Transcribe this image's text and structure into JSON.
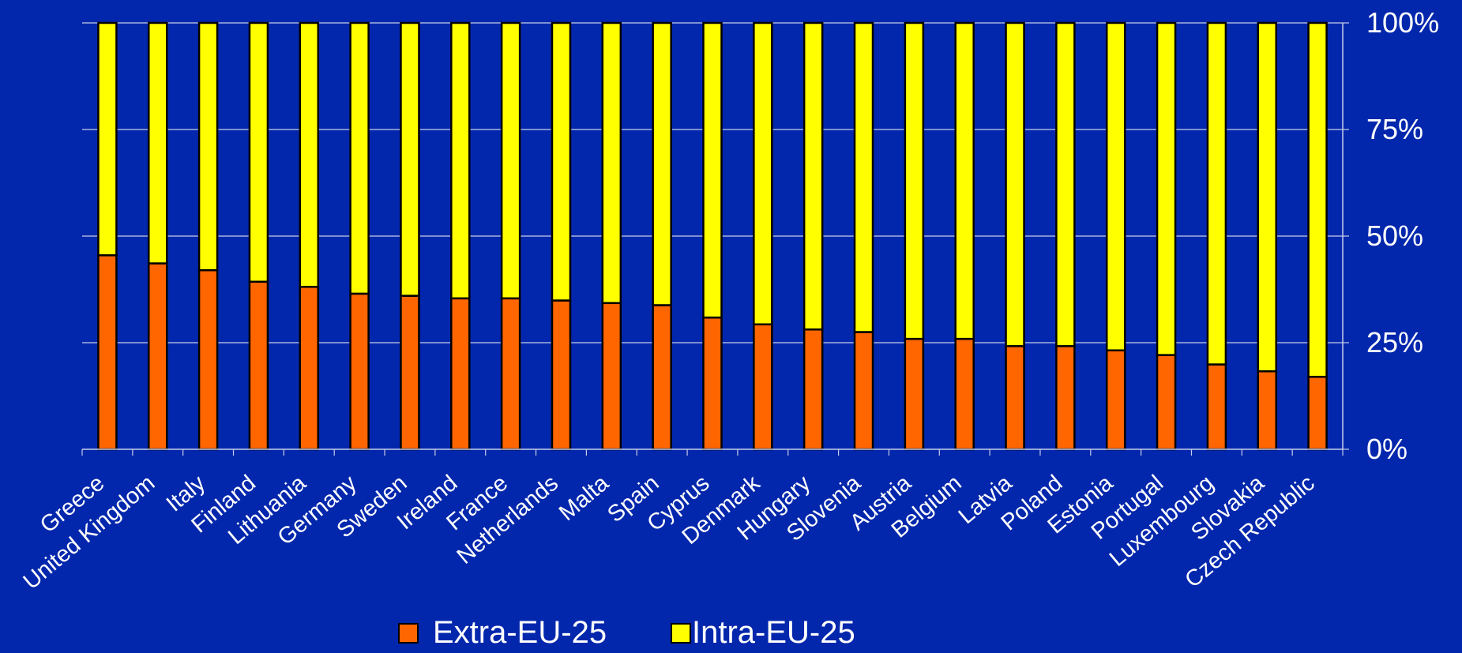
{
  "colors": {
    "background": "#0327ac",
    "grid": "#c8cde8",
    "bar_outline": "#000000",
    "text": "#ffffff",
    "extra_eu": "#ff6600",
    "intra_eu": "#ffff00"
  },
  "chart_data": {
    "type": "bar",
    "stacked": true,
    "percent_stacked": true,
    "categories": [
      "Greece",
      "United Kingdom",
      "Italy",
      "Finland",
      "Lithuania",
      "Germany",
      "Sweden",
      "Ireland",
      "France",
      "Netherlands",
      "Malta",
      "Spain",
      "Cyprus",
      "Denmark",
      "Hungary",
      "Slovenia",
      "Austria",
      "Belgium",
      "Latvia",
      "Poland",
      "Estonia",
      "Portugal",
      "Luxembourg",
      "Slovakia",
      "Czech Republic"
    ],
    "series": [
      {
        "name": "Extra-EU-25",
        "color": "#ff6600",
        "values": [
          45.5,
          43.6,
          42,
          39.3,
          38.1,
          36.5,
          36,
          35.4,
          35.4,
          34.9,
          34.3,
          33.8,
          30.9,
          29.3,
          28.1,
          27.5,
          25.9,
          25.9,
          24.2,
          24.2,
          23.2,
          22.1,
          19.9,
          18.3,
          17
        ]
      },
      {
        "name": "Intra-EU-25",
        "color": "#ffff00",
        "values": [
          54.5,
          56.4,
          58,
          60.7,
          61.9,
          63.5,
          64,
          64.6,
          64.6,
          65.1,
          65.7,
          66.2,
          69.1,
          70.7,
          71.9,
          72.5,
          74.1,
          74.1,
          75.8,
          75.8,
          76.8,
          77.9,
          80.1,
          81.7,
          83
        ]
      }
    ],
    "y_ticks": [
      "0%",
      "25%",
      "50%",
      "75%",
      "100%"
    ],
    "ylim": [
      0,
      100
    ],
    "y_axis_side": "right",
    "grid": true,
    "legend_position": "bottom-center"
  }
}
